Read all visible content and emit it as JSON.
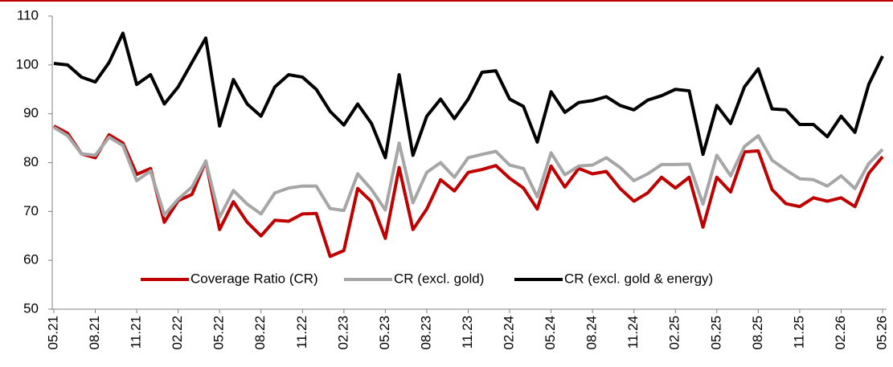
{
  "chart_data": {
    "type": "line",
    "categories": [
      "05.21",
      null,
      null,
      "08.21",
      null,
      null,
      "11.21",
      null,
      null,
      "02.22",
      null,
      null,
      "05.22",
      null,
      null,
      "08.22",
      null,
      null,
      "11.22",
      null,
      null,
      "02.23",
      null,
      null,
      "05.23",
      null,
      null,
      "08.23",
      null,
      null,
      "11.23",
      null,
      null,
      "02.24",
      null,
      null,
      "05.24",
      null,
      null,
      "08.24",
      null,
      null,
      "11.24",
      null,
      null,
      "02.25",
      null,
      null,
      "05.25",
      null,
      null,
      "08.25",
      null,
      null,
      "11.25",
      null,
      null,
      "02.26",
      null,
      null,
      "05.26"
    ],
    "series": [
      {
        "name": "Coverage Ratio (CR)",
        "color": "#c00000",
        "values": [
          87.5,
          86,
          81.8,
          81,
          85.7,
          84,
          77.6,
          78.8,
          67.8,
          72.2,
          73.5,
          80.3,
          66.3,
          72,
          67.8,
          65,
          68.2,
          68,
          69.5,
          69.6,
          60.8,
          62,
          74.7,
          72,
          64.5,
          79,
          66.3,
          70.5,
          76.5,
          74.2,
          78,
          78.6,
          79.4,
          76.8,
          74.8,
          70.5,
          79.3,
          75,
          78.8,
          77.7,
          78.2,
          74.7,
          72.1,
          73.8,
          77,
          74.8,
          77,
          66.8,
          77,
          74,
          82.2,
          82.4,
          74.5,
          71.6,
          71,
          72.8,
          72.1,
          72.8,
          71,
          77.8,
          81.2
        ]
      },
      {
        "name": "CR (excl. gold)",
        "color": "#a6a6a6",
        "values": [
          87.2,
          85.5,
          81.8,
          81.5,
          85.2,
          83.5,
          76.3,
          78.3,
          69.3,
          72.5,
          75,
          80.3,
          68.8,
          74.3,
          71.5,
          69.5,
          73.8,
          74.8,
          75.2,
          75.2,
          70.6,
          70.2,
          77.7,
          74.5,
          70.3,
          84,
          71.8,
          78,
          80,
          77,
          81,
          81.7,
          82.3,
          79.5,
          78.8,
          73,
          82,
          77.5,
          79.3,
          79.5,
          81,
          79,
          76.3,
          77.7,
          79.6,
          79.6,
          79.7,
          71.5,
          81.5,
          77.3,
          83.3,
          85.5,
          80.5,
          78.5,
          76.7,
          76.5,
          75.2,
          77.3,
          74.7,
          79.8,
          82.7
        ]
      },
      {
        "name": "CR (excl. gold & energy)",
        "color": "#000000",
        "values": [
          100.3,
          100,
          97.5,
          96.5,
          100.5,
          106.5,
          96,
          98,
          92,
          95.5,
          100.5,
          105.5,
          87.5,
          97,
          92,
          89.5,
          95.5,
          98,
          97.5,
          95,
          90.5,
          87.7,
          92,
          88,
          81,
          98,
          81.5,
          89.5,
          93,
          89,
          93,
          98.5,
          98.8,
          93,
          91.5,
          84.2,
          94.5,
          90.3,
          92.3,
          92.7,
          93.5,
          91.7,
          90.8,
          92.8,
          93.7,
          95,
          94.7,
          81.7,
          91.7,
          88,
          95.5,
          99.2,
          91,
          90.8,
          87.8,
          87.8,
          85.3,
          89.5,
          86.2,
          96,
          101.8
        ]
      }
    ],
    "ylim": [
      50,
      110
    ],
    "yticks": [
      50,
      60,
      70,
      80,
      90,
      100,
      110
    ],
    "grid": false,
    "legend": "bottom"
  }
}
